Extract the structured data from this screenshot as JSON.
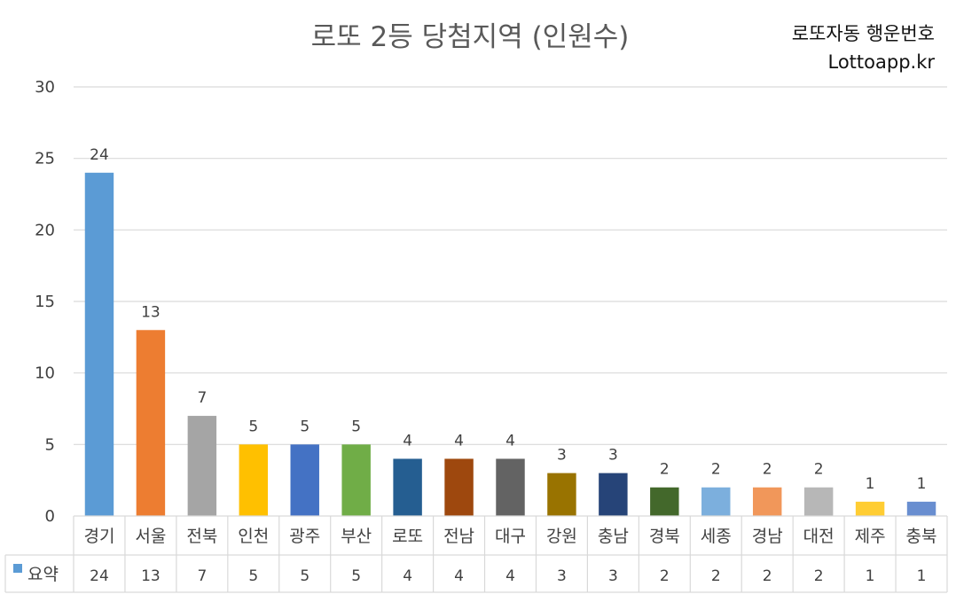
{
  "title": "로또 2등 당첨지역 (인원수)",
  "brand": {
    "line1": "로또자동 행운번호",
    "line2": "Lottoapp.kr"
  },
  "chart_data": {
    "type": "bar",
    "title": "로또 2등 당첨지역 (인원수)",
    "xlabel": "",
    "ylabel": "",
    "ylim": [
      0,
      30
    ],
    "yticks": [
      0,
      5,
      10,
      15,
      20,
      25,
      30
    ],
    "grid": true,
    "data_table": true,
    "categories": [
      "경기",
      "서울",
      "전북",
      "인천",
      "광주",
      "부산",
      "로또",
      "전남",
      "대구",
      "강원",
      "충남",
      "경북",
      "세종",
      "경남",
      "대전",
      "제주",
      "충북"
    ],
    "series": [
      {
        "name": "요약",
        "values": [
          24,
          13,
          7,
          5,
          5,
          5,
          4,
          4,
          4,
          3,
          3,
          2,
          2,
          2,
          2,
          1,
          1
        ]
      }
    ],
    "colors": [
      "#5b9bd5",
      "#ed7d31",
      "#a5a5a5",
      "#ffc000",
      "#4472c4",
      "#70ad47",
      "#255e91",
      "#9e480e",
      "#636363",
      "#997300",
      "#264478",
      "#43682b",
      "#7cafdd",
      "#f1975a",
      "#b7b7b7",
      "#ffcd33",
      "#698ed0"
    ],
    "legend_color": "#5b9bd5"
  }
}
